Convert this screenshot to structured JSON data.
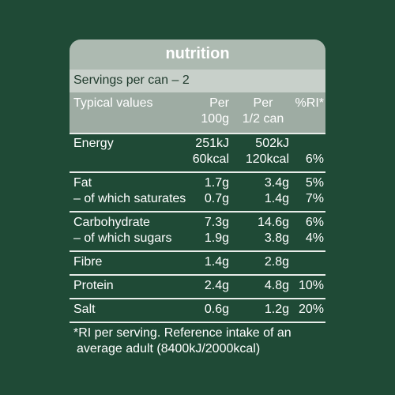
{
  "header": {
    "title": "nutrition",
    "servings": "Servings per can – 2"
  },
  "table": {
    "columns": {
      "label": "Typical values",
      "per_100g": [
        "Per",
        "100g"
      ],
      "per_serving": [
        "Per",
        "1/2 can"
      ],
      "ri": "%RI*"
    },
    "groups": [
      {
        "lines": [
          {
            "label": "Energy",
            "per_100g": "251kJ",
            "per_serving": "502kJ"
          },
          {
            "per_100g": "60kcal",
            "per_serving": "120kcal",
            "ri": "6%"
          }
        ]
      },
      {
        "lines": [
          {
            "label": "Fat",
            "per_100g": "1.7g",
            "per_serving": "3.4g",
            "ri": "5%"
          },
          {
            "label": "– of which saturates",
            "per_100g": "0.7g",
            "per_serving": "1.4g",
            "ri": "7%"
          }
        ]
      },
      {
        "lines": [
          {
            "label": "Carbohydrate",
            "per_100g": "7.3g",
            "per_serving": "14.6g",
            "ri": "6%"
          },
          {
            "label": "– of which sugars",
            "per_100g": "1.9g",
            "per_serving": "3.8g",
            "ri": "4%"
          }
        ]
      },
      {
        "lines": [
          {
            "label": "Fibre",
            "per_100g": "1.4g",
            "per_serving": "2.8g"
          }
        ]
      },
      {
        "lines": [
          {
            "label": "Protein",
            "per_100g": "2.4g",
            "per_serving": "4.8g",
            "ri": "10%"
          }
        ]
      },
      {
        "lines": [
          {
            "label": "Salt",
            "per_100g": "0.6g",
            "per_serving": "1.2g",
            "ri": "20%"
          }
        ]
      }
    ]
  },
  "footnote": [
    "*RI per serving. Reference intake of an",
    "average adult (8400kJ/2000kcal)"
  ]
}
